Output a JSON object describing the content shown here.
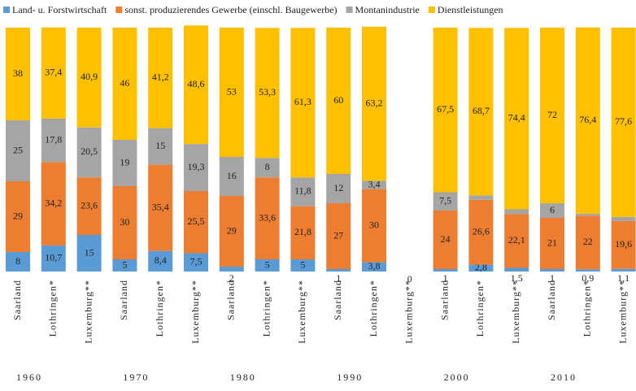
{
  "chart_data": {
    "type": "stacked_bar",
    "categories": [
      "Saarland",
      "Lothringen*",
      "Luxemburg**",
      "Saarland",
      "Lothringen*",
      "Luxemburg**",
      "Saarland",
      "Lothringen*",
      "Luxemburg**",
      "Saarland",
      "Lothringen*",
      "Luxemburg**",
      "Saarland",
      "Lothringen*",
      "Luxemburg**",
      "Saarland",
      "Lothringen*",
      "Luxemburg**"
    ],
    "groups": [
      1960,
      1970,
      1980,
      1990,
      2000,
      2010
    ],
    "ylim": [
      0,
      100
    ],
    "series": [
      {
        "name": "Land- u. Forstwirtschaft",
        "color": "#5b9bd5",
        "values": [
          8,
          10.7,
          15,
          5,
          8.4,
          7.5,
          2,
          5,
          5,
          1,
          3.8,
          0,
          1,
          2.8,
          1.5,
          1,
          0.9,
          1.1
        ],
        "value_labels": [
          "8",
          "10,7",
          "15",
          "5",
          "8,4",
          "7,5",
          "2",
          "5",
          "5",
          "1",
          "3,8",
          "0",
          "1",
          "2,8",
          "1,5",
          "1",
          "0,9",
          "1,1"
        ]
      },
      {
        "name": "sonst. produzierendes Gewerbe (einschl. Baugewerbe)",
        "color": "#ed7d31",
        "values": [
          29,
          34.2,
          23.6,
          30,
          35.4,
          25.5,
          29,
          33.6,
          21.8,
          27,
          30,
          null,
          24,
          26.6,
          22.1,
          21,
          22,
          19.6
        ],
        "value_labels": [
          "29",
          "34,2",
          "23,6",
          "30",
          "35,4",
          "25,5",
          "29",
          "33,6",
          "21,8",
          "27",
          "30",
          null,
          "24",
          "26,6",
          "22,1",
          "21",
          "22",
          "19,6"
        ]
      },
      {
        "name": "Montanindustrie",
        "color": "#a5a5a5",
        "values": [
          25,
          17.8,
          20.5,
          19,
          15,
          19.3,
          16,
          8,
          11.8,
          12,
          3.4,
          null,
          7.5,
          1.8,
          1.9,
          6,
          0.8,
          1.7
        ],
        "value_labels": [
          "25",
          "17,8",
          "20,5",
          "19",
          "15",
          "19,3",
          "16",
          "8",
          "11,8",
          "12",
          "3,4",
          null,
          "7,5",
          "1,8",
          "1,9",
          "6",
          "0,8",
          "1,7"
        ]
      },
      {
        "name": "Dienstleistungen",
        "color": "#ffc000",
        "values": [
          38,
          37.4,
          40.9,
          46,
          41.2,
          48.6,
          53,
          53.3,
          61.3,
          60,
          63.2,
          null,
          67.5,
          68.7,
          74.4,
          72,
          76.4,
          77.6
        ],
        "value_labels": [
          "38",
          "37,4",
          "40,9",
          "46",
          "41,2",
          "48,6",
          "53",
          "53,3",
          "61,3",
          "60",
          "63,2",
          null,
          "67,5",
          "68,7",
          "74,4",
          "72",
          "76,4",
          "77,6"
        ]
      }
    ]
  }
}
